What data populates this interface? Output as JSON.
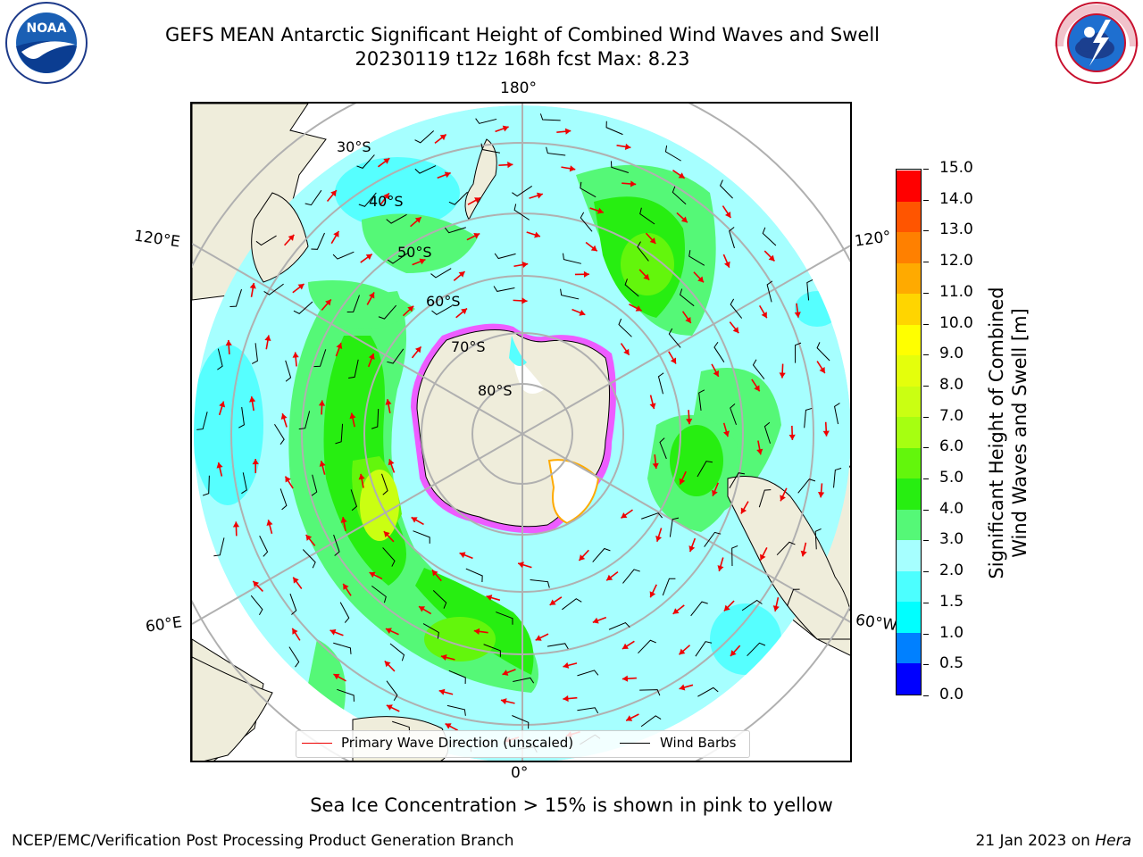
{
  "header": {
    "title_line1": "GEFS MEAN Antarctic Significant Height of Combined Wind Waves and Swell",
    "title_line2": "20230119 t12z 168h fcst   Max: 8.23"
  },
  "logos": {
    "left": "noaa-logo",
    "right": "nws-logo",
    "left_text": "NOAA",
    "right_ring_text": "NATIONAL WEATHER SERVICE"
  },
  "map": {
    "projection": "south-polar-stereographic",
    "lat_labels": [
      "30°S",
      "40°S",
      "50°S",
      "60°S",
      "70°S",
      "80°S"
    ],
    "lon_labels": {
      "top": "180°",
      "upper_left": "120°E",
      "upper_right": "120°",
      "lower_left": "60°E",
      "lower_right": "60°W",
      "bottom": "0°"
    },
    "colors": {
      "land": "#efeddb",
      "ocean_1": "#a6ffff",
      "ocean_2": "#56ffff",
      "ocean_3": "#55f877",
      "ocean_4": "#27ee11",
      "ocean_5": "#caff12",
      "grid": "#b0b0b0",
      "wave_arrow": "#ee0000",
      "wind_barb": "#000000",
      "sea_ice": "#ff33ff"
    }
  },
  "legend": {
    "primary_wave_label": "Primary Wave Direction (unscaled)",
    "wind_barbs_label": "Wind Barbs"
  },
  "colorbar": {
    "title_line1": "Significant Height of Combined",
    "title_line2": "Wind Waves and Swell [m]",
    "ticks": [
      "0.0",
      "0.5",
      "1.0",
      "1.5",
      "2.0",
      "3.0",
      "4.0",
      "5.0",
      "6.0",
      "7.0",
      "8.0",
      "9.0",
      "10.0",
      "11.0",
      "12.0",
      "13.0",
      "14.0",
      "15.0"
    ],
    "colors": [
      "#0000ff",
      "#0080ff",
      "#00ffff",
      "#4cffff",
      "#a6ffff",
      "#55f877",
      "#27ee11",
      "#63f60c",
      "#a6ff11",
      "#caff12",
      "#e4ff0c",
      "#ffff00",
      "#ffd500",
      "#ffaa00",
      "#ff8000",
      "#ff5500",
      "#ff0000"
    ]
  },
  "notes": {
    "sea_ice": "Sea Ice Concentration > 15% is shown in pink to yellow"
  },
  "footer": {
    "left": "NCEP/EMC/Verification Post Processing Product Generation Branch",
    "right_date": "21 Jan 2023 on",
    "right_machine": "Hera"
  },
  "chart_data": {
    "type": "map",
    "variable": "Significant Height of Combined Wind Waves and Swell",
    "units": "m",
    "max_value": 8.23,
    "levels": [
      0.0,
      0.5,
      1.0,
      1.5,
      2.0,
      3.0,
      4.0,
      5.0,
      6.0,
      7.0,
      8.0,
      9.0,
      10.0,
      11.0,
      12.0,
      13.0,
      14.0,
      15.0
    ]
  }
}
